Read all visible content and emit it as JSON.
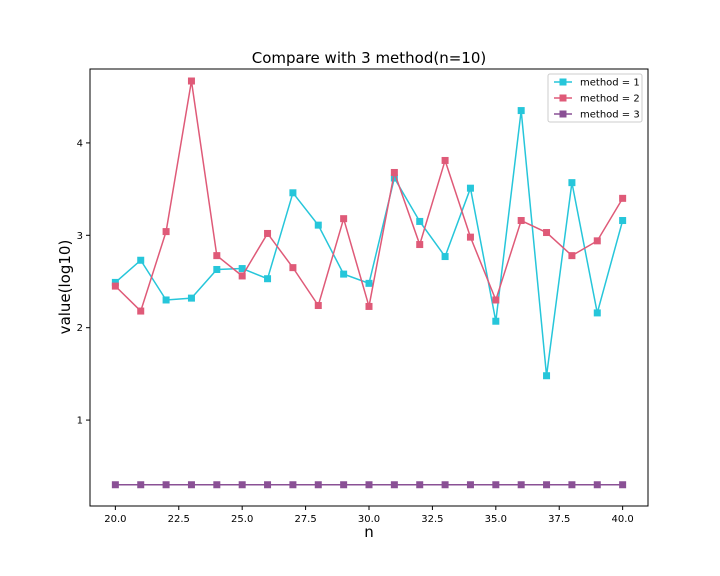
{
  "chart_data": {
    "type": "line",
    "title": "Compare with 3 method(n=10)",
    "xlabel": "n",
    "ylabel": "value(log10)",
    "xlim": [
      19.0,
      41.0
    ],
    "ylim": [
      0.07,
      4.8
    ],
    "x_ticks": [
      "20.0",
      "22.5",
      "25.0",
      "27.5",
      "30.0",
      "32.5",
      "35.0",
      "37.5",
      "40.0"
    ],
    "y_ticks": [
      "1",
      "2",
      "3",
      "4"
    ],
    "grid": false,
    "legend_position": "top-right",
    "x": [
      20,
      21,
      22,
      23,
      24,
      25,
      26,
      27,
      28,
      29,
      30,
      31,
      32,
      33,
      34,
      35,
      36,
      37,
      38,
      39,
      40
    ],
    "series": [
      {
        "name": "method = 1",
        "color": "#26c6da",
        "values": [
          2.49,
          2.73,
          2.3,
          2.32,
          2.63,
          2.64,
          2.53,
          3.46,
          3.11,
          2.58,
          2.48,
          3.62,
          3.15,
          2.77,
          3.51,
          2.07,
          4.35,
          1.48,
          3.57,
          2.16,
          3.16
        ]
      },
      {
        "name": "method = 2",
        "color": "#df5a78",
        "values": [
          2.45,
          2.18,
          3.04,
          4.67,
          2.78,
          2.56,
          3.02,
          2.65,
          2.24,
          3.18,
          2.23,
          3.68,
          2.9,
          3.81,
          2.98,
          2.3,
          3.16,
          3.03,
          2.78,
          2.94,
          3.4
        ]
      },
      {
        "name": "method = 3",
        "color": "#8a5095",
        "values": [
          0.3,
          0.3,
          0.3,
          0.3,
          0.3,
          0.3,
          0.3,
          0.3,
          0.3,
          0.3,
          0.3,
          0.3,
          0.3,
          0.3,
          0.3,
          0.3,
          0.3,
          0.3,
          0.3,
          0.3,
          0.3
        ]
      }
    ]
  }
}
